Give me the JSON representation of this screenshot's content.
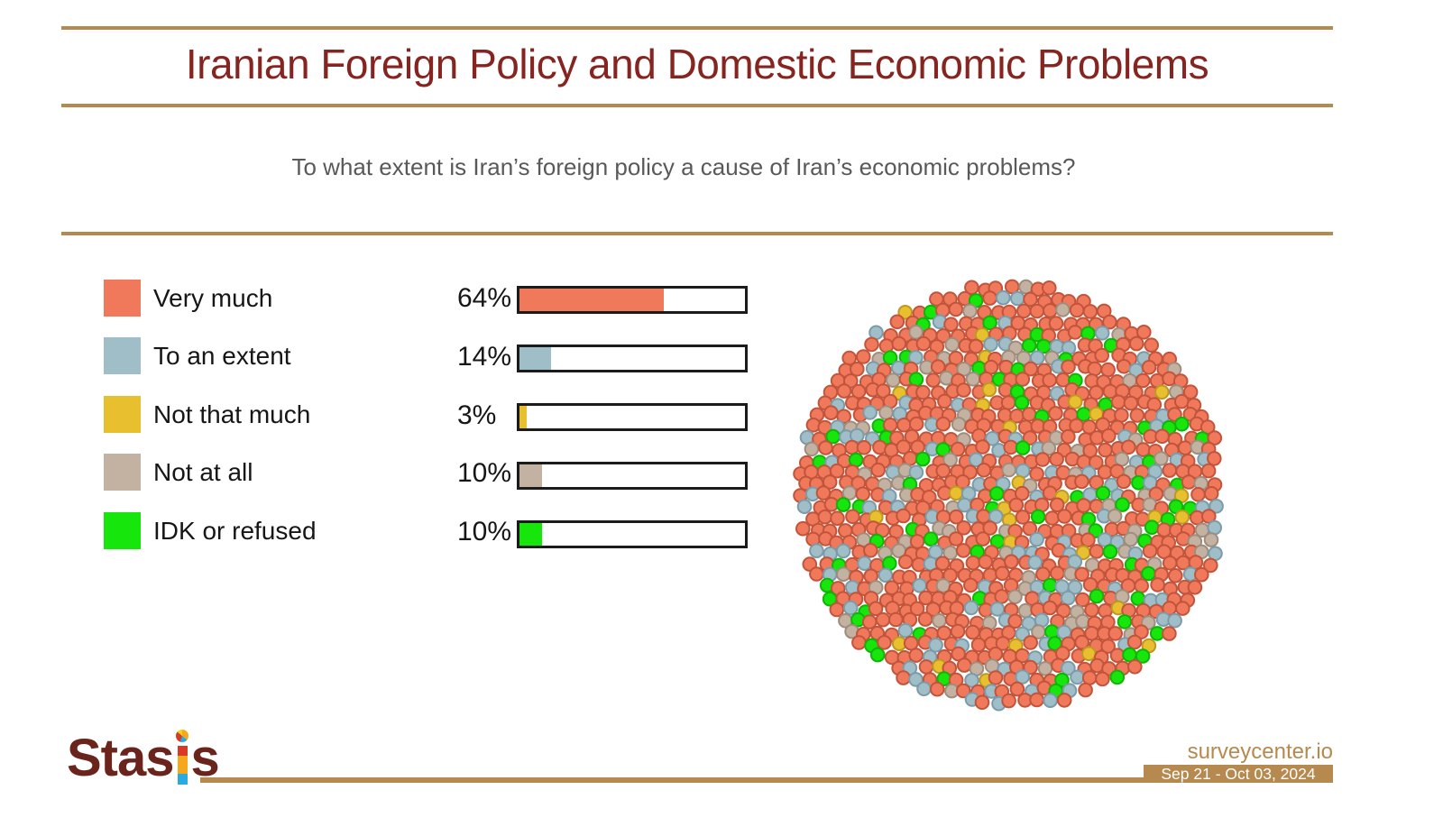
{
  "header": {
    "title": "Iranian Foreign Policy and Domestic Economic Problems"
  },
  "question": {
    "text": "To what extent is Iran’s foreign policy a cause of Iran’s economic problems?"
  },
  "chart_data": {
    "type": "bar",
    "title": "Iranian Foreign Policy and Domestic Economic Problems",
    "question": "To what extent is Iran’s foreign policy a cause of Iran’s economic problems?",
    "categories": [
      "Very much",
      "To an extent",
      "Not that much",
      "Not at all",
      "IDK or refused"
    ],
    "values": [
      64,
      14,
      3,
      10,
      10
    ],
    "display_values": [
      "64%",
      "14%",
      "3%",
      "10%",
      "10%"
    ],
    "unit": "%",
    "xlim": [
      0,
      100
    ],
    "legend_position": "left",
    "colors": [
      "#F0795B",
      "#9FBEC7",
      "#E7BF2F",
      "#C3B2A2",
      "#16E60C"
    ],
    "stroke_colors": [
      "#C2543B",
      "#7C9BA8",
      "#BE9821",
      "#9E8D7D",
      "#10B408"
    ],
    "dot_cluster": {
      "shape": "circle",
      "approx_dots": 1000,
      "note": "each dot = one respondent, colored by answer share"
    }
  },
  "theme": {
    "accent_gold": "#B6894E",
    "title_color": "#862420",
    "bar_border": "#1b1b1b"
  },
  "footer": {
    "logo_text_left": "Sta",
    "logo_text_mid": "s",
    "logo_text_right": "s",
    "source": "surveycenter.io",
    "date_range": "Sep 21 - Oct 03, 2024"
  }
}
